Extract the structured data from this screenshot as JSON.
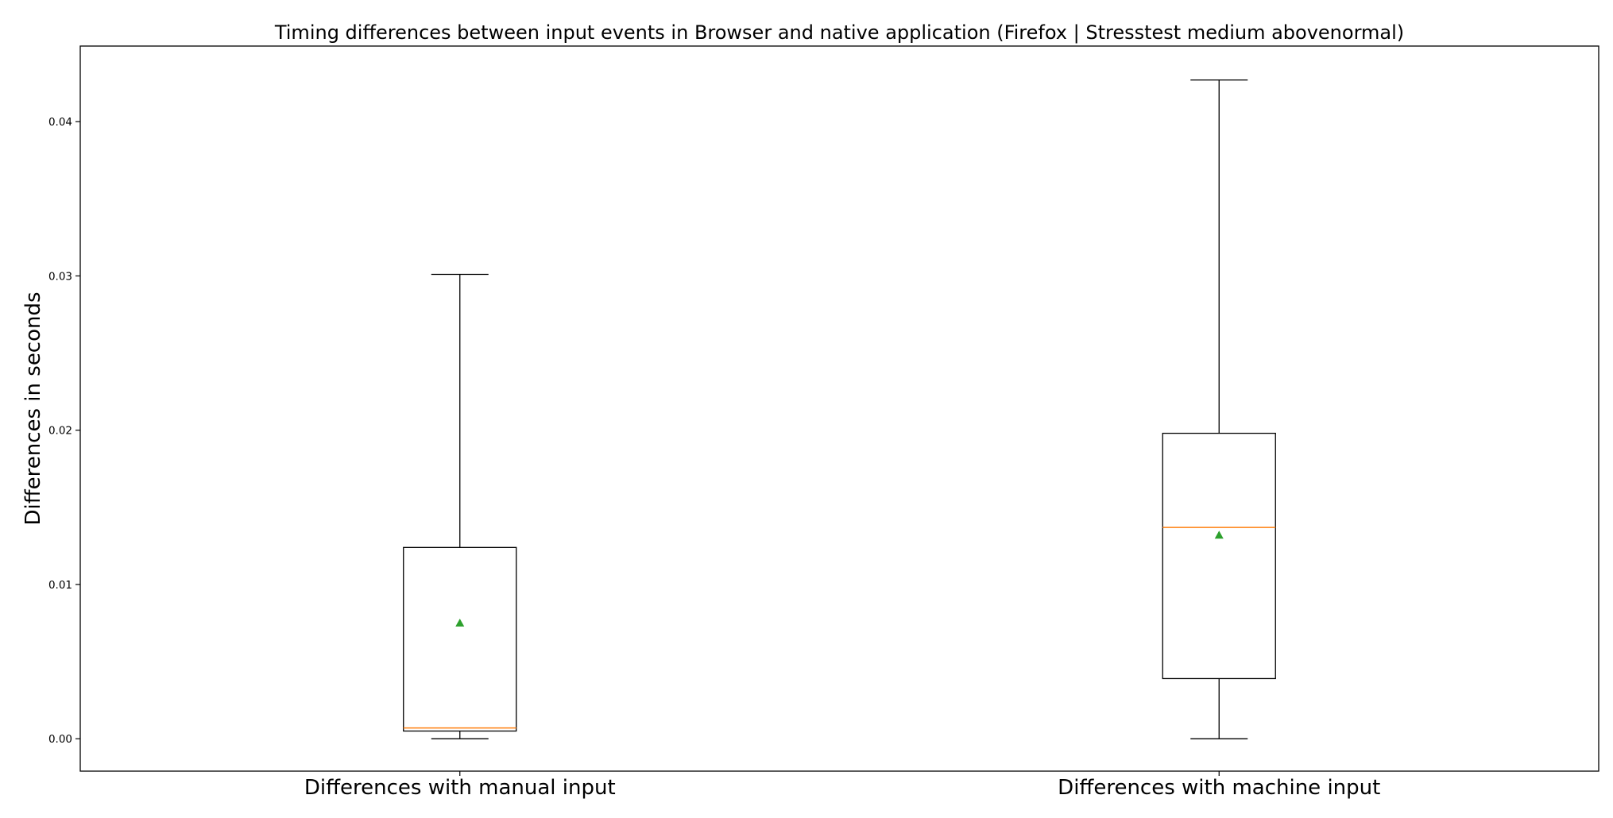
{
  "chart_data": {
    "type": "box",
    "title": "Timing differences between input events in Browser and native application (Firefox | Stresstest medium abovenormal)",
    "xlabel": "",
    "ylabel": "Differences in seconds",
    "ylim": [
      -0.0021,
      0.0449
    ],
    "yticks": [
      0.0,
      0.01,
      0.02,
      0.03,
      0.04
    ],
    "ytick_labels": [
      "0.00",
      "0.01",
      "0.02",
      "0.03",
      "0.04"
    ],
    "grid": false,
    "legend": "none",
    "categories": [
      "Differences with manual input",
      "Differences with machine input"
    ],
    "boxes": [
      {
        "whisker_low": 0.0,
        "q1": 0.0005,
        "median": 0.0007,
        "q3": 0.0124,
        "whisker_high": 0.0301,
        "mean": 0.0075
      },
      {
        "whisker_low": 0.0,
        "q1": 0.0039,
        "median": 0.0137,
        "q3": 0.0198,
        "whisker_high": 0.0427,
        "mean": 0.0132
      }
    ],
    "colors": {
      "box": "#000000",
      "median": "#ff7f0e",
      "mean": "#2ca02c"
    }
  }
}
